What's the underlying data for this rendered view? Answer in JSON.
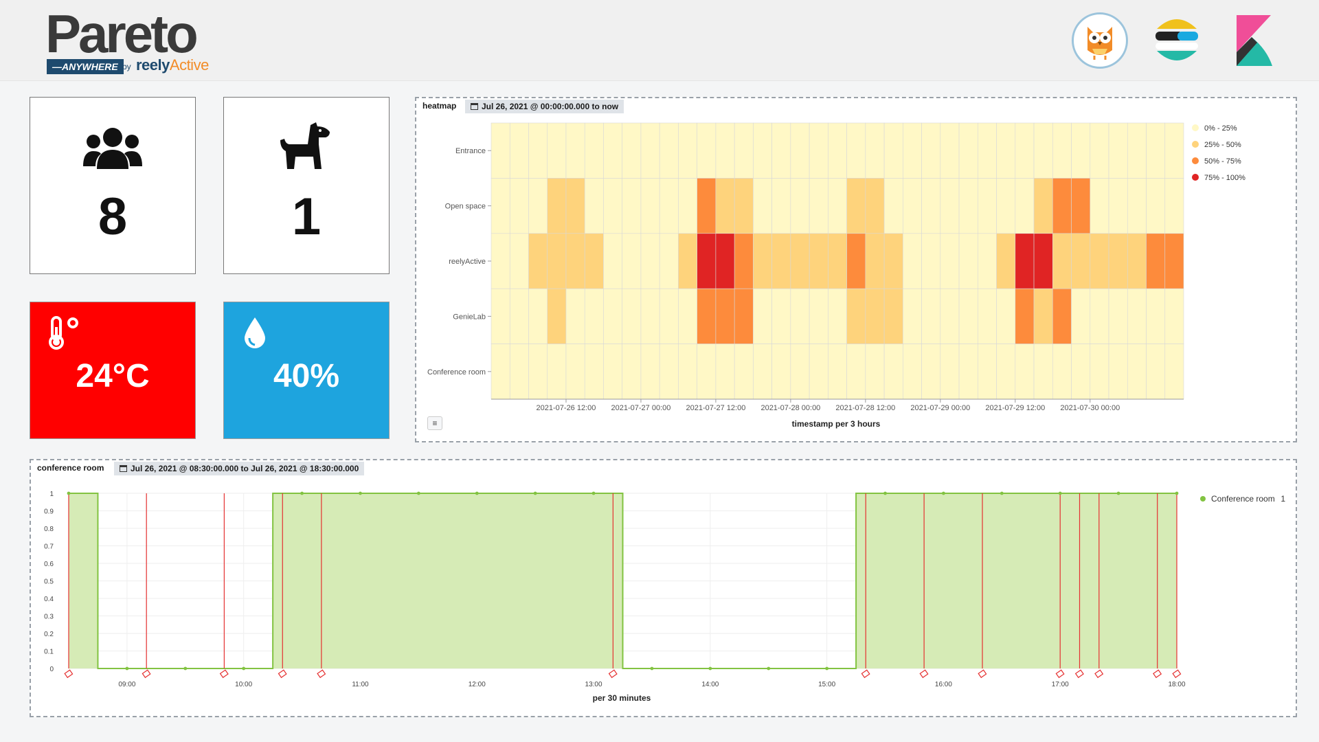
{
  "logo": {
    "title": "Pareto",
    "badge": "—ANYWHERE",
    "by": "by",
    "brand_left": "reely",
    "brand_right": "Active"
  },
  "metrics": [
    {
      "icon": "people-group-icon",
      "value": "8"
    },
    {
      "icon": "dog-icon",
      "value": "1"
    }
  ],
  "temperature": {
    "icon": "thermometer-icon",
    "value": "24°C",
    "color": "#ff0000"
  },
  "humidity": {
    "icon": "water-drop-icon",
    "value": "40%",
    "color": "#1ea4de"
  },
  "heatmap_panel": {
    "title": "heatmap",
    "time_range": "Jul 26, 2021 @ 00:00:00.000 to now",
    "xlabel": "timestamp per 3 hours"
  },
  "conference_panel": {
    "title": "conference room",
    "time_range": "Jul 26, 2021 @ 08:30:00.000 to Jul 26, 2021 @ 18:30:00.000",
    "xlabel": "per 30 minutes"
  },
  "chart_data": [
    {
      "type": "heatmap",
      "rows": [
        "Entrance",
        "Open space",
        "reelyActive",
        "GenieLab",
        "Conference room"
      ],
      "x_tick_labels": [
        "2021-07-26 12:00",
        "2021-07-27 00:00",
        "2021-07-27 12:00",
        "2021-07-28 00:00",
        "2021-07-28 12:00",
        "2021-07-29 00:00",
        "2021-07-29 12:00",
        "2021-07-30 00:00"
      ],
      "xlabel": "timestamp per 3 hours",
      "legend": [
        {
          "label": "0% - 25%",
          "color": "#fff8c6"
        },
        {
          "label": "25% - 50%",
          "color": "#fed37c"
        },
        {
          "label": "50% - 75%",
          "color": "#fd8b3c"
        },
        {
          "label": "75% - 100%",
          "color": "#e02424"
        }
      ],
      "bin_hours": 3,
      "start": "2021-07-26 00:00",
      "levels": [
        [
          0,
          0,
          0,
          0,
          0,
          0,
          0,
          0,
          0,
          0,
          0,
          0,
          0,
          0,
          0,
          0,
          0,
          0,
          0,
          0,
          0,
          0,
          0,
          0,
          0,
          0,
          0,
          0,
          0,
          0,
          0,
          0,
          0,
          0,
          0,
          0,
          0
        ],
        [
          0,
          0,
          0,
          1,
          1,
          0,
          0,
          0,
          0,
          0,
          0,
          2,
          1,
          1,
          0,
          0,
          0,
          0,
          0,
          1,
          1,
          0,
          0,
          0,
          0,
          0,
          0,
          0,
          0,
          1,
          2,
          2,
          0,
          0,
          0,
          0,
          0
        ],
        [
          0,
          0,
          1,
          1,
          1,
          1,
          0,
          0,
          0,
          0,
          1,
          3,
          3,
          2,
          1,
          1,
          1,
          1,
          1,
          2,
          1,
          1,
          0,
          0,
          0,
          0,
          0,
          1,
          3,
          3,
          1,
          1,
          1,
          1,
          1,
          2,
          2
        ],
        [
          0,
          0,
          0,
          1,
          0,
          0,
          0,
          0,
          0,
          0,
          0,
          2,
          2,
          2,
          0,
          0,
          0,
          0,
          0,
          1,
          1,
          1,
          0,
          0,
          0,
          0,
          0,
          0,
          2,
          1,
          2,
          0,
          0,
          0,
          0,
          0,
          0
        ],
        [
          0,
          0,
          0,
          0,
          0,
          0,
          0,
          0,
          0,
          0,
          0,
          0,
          0,
          0,
          0,
          0,
          0,
          0,
          0,
          0,
          0,
          0,
          0,
          0,
          0,
          0,
          0,
          0,
          0,
          0,
          0,
          0,
          0,
          0,
          0,
          0,
          0
        ]
      ]
    },
    {
      "type": "area",
      "series": [
        {
          "name": "Conference room",
          "latest_value": "1",
          "color": "#82c341"
        }
      ],
      "xlabel": "per 30 minutes",
      "ylim": [
        0,
        1
      ],
      "y_ticks": [
        "0",
        "0.1",
        "0.2",
        "0.3",
        "0.4",
        "0.5",
        "0.6",
        "0.7",
        "0.8",
        "0.9",
        "1"
      ],
      "x_ticks": [
        "09:00",
        "10:00",
        "11:00",
        "12:00",
        "13:00",
        "14:00",
        "15:00",
        "16:00",
        "17:00",
        "18:00"
      ],
      "x_range": [
        "08:30",
        "18:00"
      ],
      "segments": [
        {
          "from": "08:30",
          "to": "08:45",
          "value": 1
        },
        {
          "from": "08:45",
          "to": "10:15",
          "value": 0
        },
        {
          "from": "10:15",
          "to": "13:15",
          "value": 1
        },
        {
          "from": "13:15",
          "to": "15:15",
          "value": 0
        },
        {
          "from": "15:15",
          "to": "18:00",
          "value": 1
        }
      ],
      "points": [
        {
          "t": "08:30",
          "v": 1
        },
        {
          "t": "09:00",
          "v": 0
        },
        {
          "t": "09:30",
          "v": 0
        },
        {
          "t": "10:00",
          "v": 0
        },
        {
          "t": "10:30",
          "v": 1
        },
        {
          "t": "11:00",
          "v": 1
        },
        {
          "t": "11:30",
          "v": 1
        },
        {
          "t": "12:00",
          "v": 1
        },
        {
          "t": "12:30",
          "v": 1
        },
        {
          "t": "13:00",
          "v": 1
        },
        {
          "t": "13:30",
          "v": 0
        },
        {
          "t": "14:00",
          "v": 0
        },
        {
          "t": "14:30",
          "v": 0
        },
        {
          "t": "15:00",
          "v": 0
        },
        {
          "t": "15:30",
          "v": 1
        },
        {
          "t": "16:00",
          "v": 1
        },
        {
          "t": "16:30",
          "v": 1
        },
        {
          "t": "17:00",
          "v": 1
        },
        {
          "t": "17:30",
          "v": 1
        },
        {
          "t": "18:00",
          "v": 1
        }
      ],
      "annotations": [
        "08:30",
        "09:10",
        "09:50",
        "10:20",
        "10:40",
        "13:10",
        "15:20",
        "15:50",
        "16:20",
        "17:00",
        "17:10",
        "17:20",
        "17:50",
        "18:00"
      ]
    }
  ]
}
